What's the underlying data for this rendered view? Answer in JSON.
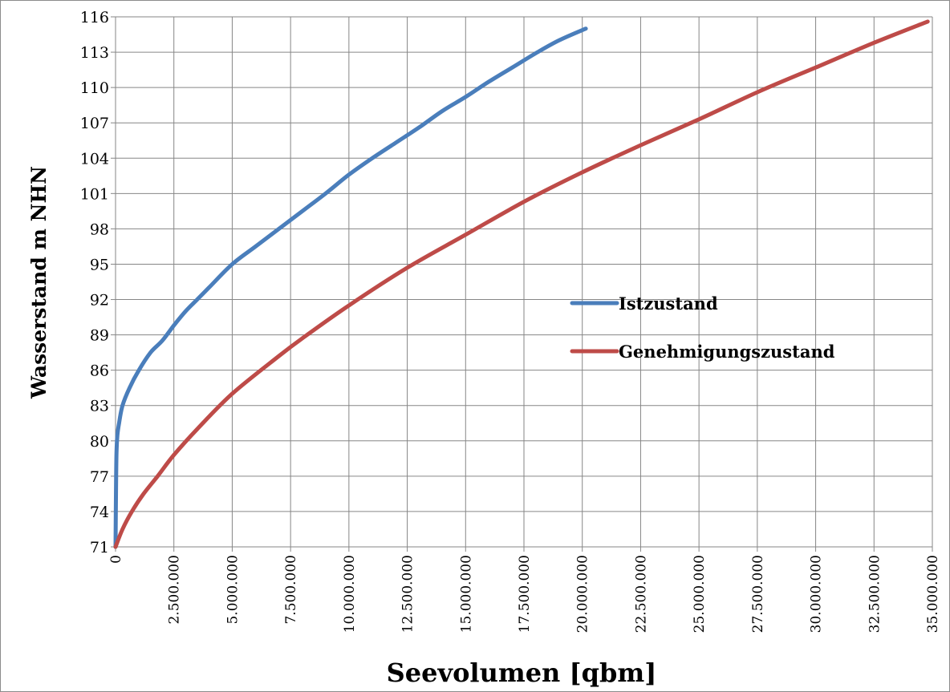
{
  "chart_data": {
    "type": "line",
    "title": "",
    "xlabel": "Seevolumen [qbm]",
    "ylabel": "Wasserstand m NHN",
    "xlim": [
      0,
      35000000
    ],
    "ylim": [
      71,
      116
    ],
    "x_ticks": [
      0,
      2500000,
      5000000,
      7500000,
      10000000,
      12500000,
      15000000,
      17500000,
      20000000,
      22500000,
      25000000,
      27500000,
      30000000,
      32500000,
      35000000
    ],
    "x_tick_labels": [
      "0",
      "2.500.000",
      "5.000.000",
      "7.500.000",
      "10.000.000",
      "12.500.000",
      "15.000.000",
      "17.500.000",
      "20.000.000",
      "22.500.000",
      "25.000.000",
      "27.500.000",
      "30.000.000",
      "32.500.000",
      "35.000.000"
    ],
    "y_ticks": [
      71,
      74,
      77,
      80,
      83,
      86,
      89,
      92,
      95,
      98,
      101,
      104,
      107,
      110,
      113,
      116
    ],
    "y_tick_labels": [
      "71",
      "74",
      "77",
      "80",
      "83",
      "86",
      "89",
      "92",
      "95",
      "98",
      "101",
      "104",
      "107",
      "110",
      "113",
      "116"
    ],
    "grid": true,
    "legend_position": "right",
    "series": [
      {
        "name": "Istzustand",
        "color": "#4a7ebb",
        "points": [
          [
            0,
            71
          ],
          [
            20000,
            76
          ],
          [
            40000,
            79
          ],
          [
            80000,
            80.5
          ],
          [
            150000,
            81.5
          ],
          [
            300000,
            83
          ],
          [
            600000,
            84.5
          ],
          [
            1000000,
            86
          ],
          [
            1500000,
            87.5
          ],
          [
            2000000,
            88.5
          ],
          [
            2500000,
            89.8
          ],
          [
            3000000,
            91
          ],
          [
            3500000,
            92
          ],
          [
            4000000,
            93
          ],
          [
            5000000,
            95
          ],
          [
            6000000,
            96.5
          ],
          [
            7000000,
            98
          ],
          [
            8000000,
            99.5
          ],
          [
            9000000,
            101
          ],
          [
            10000000,
            102.6
          ],
          [
            11000000,
            104
          ],
          [
            12000000,
            105.3
          ],
          [
            13000000,
            106.6
          ],
          [
            14000000,
            108
          ],
          [
            15000000,
            109.2
          ],
          [
            16000000,
            110.5
          ],
          [
            17000000,
            111.7
          ],
          [
            18000000,
            112.9
          ],
          [
            19000000,
            114
          ],
          [
            20150000,
            115
          ]
        ]
      },
      {
        "name": "Genehmigungszustand",
        "color": "#be4b48",
        "points": [
          [
            0,
            71
          ],
          [
            300000,
            72.5
          ],
          [
            700000,
            74
          ],
          [
            1200000,
            75.5
          ],
          [
            1800000,
            77
          ],
          [
            2500000,
            78.8
          ],
          [
            3500000,
            81
          ],
          [
            5000000,
            84
          ],
          [
            7000000,
            87.2
          ],
          [
            8000000,
            88.7
          ],
          [
            10000000,
            91.5
          ],
          [
            12500000,
            94.7
          ],
          [
            15000000,
            97.5
          ],
          [
            17500000,
            100.3
          ],
          [
            20000000,
            102.8
          ],
          [
            22500000,
            105.1
          ],
          [
            25000000,
            107.3
          ],
          [
            27500000,
            109.6
          ],
          [
            30000000,
            111.7
          ],
          [
            32500000,
            113.8
          ],
          [
            34800000,
            115.6
          ]
        ]
      }
    ]
  }
}
